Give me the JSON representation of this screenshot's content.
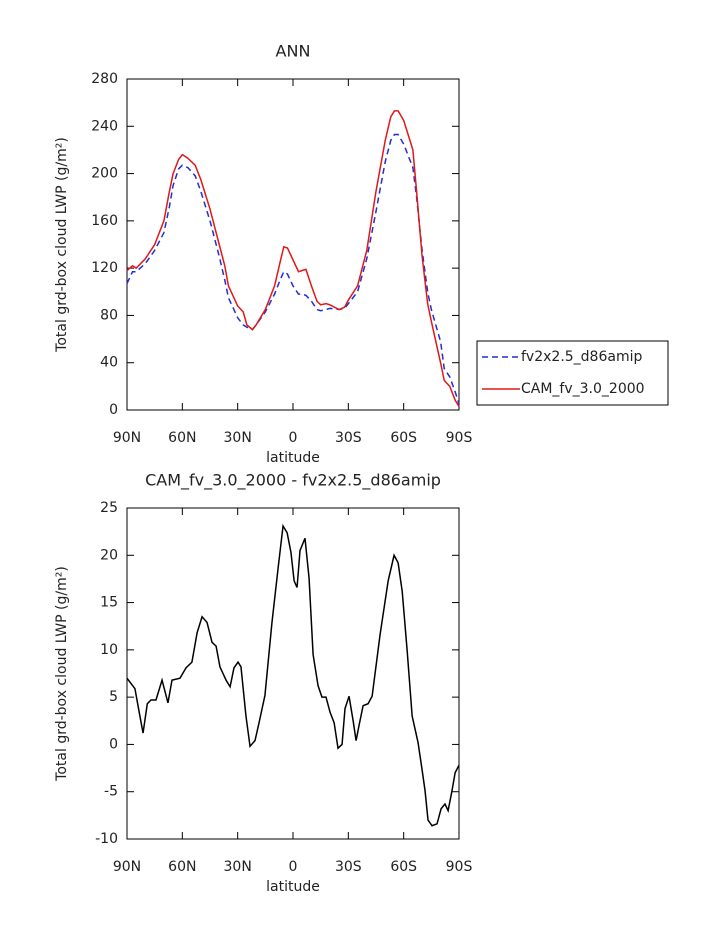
{
  "chart_data": [
    {
      "type": "line",
      "title": "ANN",
      "xlabel": "latitude",
      "ylabel": "Total grd-box cloud LWP (g/m²)",
      "x": [
        90,
        87,
        85,
        80,
        75,
        70,
        67,
        65,
        62,
        60,
        57,
        53,
        50,
        45,
        40,
        37,
        35,
        30,
        27,
        25,
        22,
        20,
        15,
        10,
        7,
        5,
        3,
        0,
        -3,
        -5,
        -7,
        -10,
        -13,
        -15,
        -18,
        -20,
        -25,
        -28,
        -30,
        -35,
        -40,
        -45,
        -50,
        -53,
        -55,
        -57,
        -60,
        -65,
        -67,
        -70,
        -73,
        -75,
        -80,
        -82,
        -85,
        -88,
        -90
      ],
      "series": [
        {
          "name": "fv2x2.5_d86amip",
          "color": "#1f2fd0",
          "dash": "dashed",
          "values": [
            107,
            117,
            117,
            124,
            135,
            150,
            172,
            190,
            204,
            207,
            205,
            198,
            185,
            160,
            130,
            110,
            95,
            78,
            72,
            70,
            68,
            72,
            83,
            98,
            110,
            117,
            115,
            105,
            98,
            98,
            97,
            92,
            85,
            84,
            85,
            86,
            85,
            86,
            90,
            100,
            128,
            168,
            210,
            228,
            233,
            233,
            225,
            205,
            180,
            135,
            100,
            85,
            58,
            35,
            28,
            15,
            5
          ]
        },
        {
          "name": "CAM_fv_3.0_2000",
          "color": "#e01818",
          "dash": "solid",
          "values": [
            118,
            122,
            120,
            128,
            140,
            160,
            185,
            200,
            212,
            216,
            213,
            207,
            195,
            170,
            140,
            122,
            105,
            88,
            83,
            72,
            68,
            72,
            85,
            105,
            125,
            138,
            137,
            127,
            117,
            118,
            119,
            105,
            92,
            89,
            90,
            89,
            85,
            87,
            93,
            105,
            135,
            185,
            228,
            248,
            253,
            253,
            245,
            220,
            185,
            130,
            90,
            75,
            40,
            25,
            20,
            8,
            3
          ]
        }
      ],
      "xlim": [
        90,
        -90
      ],
      "xticks": [
        {
          "value": 90,
          "label": "90N"
        },
        {
          "value": 60,
          "label": "60N"
        },
        {
          "value": 30,
          "label": "30N"
        },
        0,
        {
          "value": -30,
          "label": "30S"
        },
        {
          "value": -60,
          "label": "60S"
        },
        {
          "value": -90,
          "label": "90S"
        }
      ],
      "ylim": [
        0,
        280
      ],
      "yticks": [
        0,
        40,
        80,
        120,
        160,
        200,
        240,
        280
      ],
      "legend": "right"
    },
    {
      "type": "line",
      "title": "CAM_fv_3.0_2000 - fv2x2.5_d86amip",
      "xlabel": "latitude",
      "ylabel": "Total grd-box cloud LWP (g/m²)",
      "x": [
        90,
        85.7,
        83,
        81.3,
        79,
        77,
        74.3,
        71,
        67.8,
        65.6,
        61.3,
        58,
        54.8,
        52,
        49.3,
        46.6,
        43.9,
        41.7,
        39.6,
        36.3,
        34.1,
        32,
        29.8,
        28.2,
        25.5,
        23.3,
        20.6,
        18.4,
        15.2,
        11.4,
        8.1,
        5.4,
        3.2,
        1.1,
        -0.6,
        -2.2,
        -3.8,
        -6.5,
        -8.7,
        -10.9,
        -13.6,
        -15.7,
        -17.9,
        -20.1,
        -22.3,
        -24.4,
        -26.6,
        -28.2,
        -30.4,
        -32.6,
        -34.2,
        -35.8,
        -38,
        -40.7,
        -42.9,
        -47.2,
        -51.6,
        -54.8,
        -57,
        -59.2,
        -61.9,
        -64.6,
        -67.8,
        -70,
        -71.6,
        -73.2,
        -75.4,
        -78.1,
        -80.3,
        -82.4,
        -84.1,
        -86.2,
        -87.9,
        -90
      ],
      "values": [
        7.0,
        5.9,
        3.0,
        1.2,
        4.3,
        4.7,
        4.7,
        6.8,
        4.4,
        6.8,
        7.0,
        8.1,
        8.7,
        11.8,
        13.5,
        12.9,
        10.8,
        10.4,
        8.2,
        6.8,
        6.1,
        8.1,
        8.7,
        8.2,
        3.0,
        -0.2,
        0.4,
        2.3,
        5.2,
        12.9,
        18.6,
        23.1,
        22.4,
        20.3,
        17.3,
        16.6,
        20.5,
        21.8,
        17.6,
        9.5,
        6.2,
        5.0,
        5.0,
        3.4,
        2.3,
        -0.4,
        0,
        3.8,
        5.1,
        2.5,
        0.4,
        2.0,
        4.1,
        4.3,
        5.1,
        11.6,
        17.3,
        20.0,
        19.2,
        16.2,
        9.9,
        3.0,
        0.2,
        -2.7,
        -4.9,
        -8.0,
        -8.6,
        -8.4,
        -6.8,
        -6.3,
        -7.0,
        -4.9,
        -3.0,
        -2.2
      ],
      "color": "#000000",
      "xlim": [
        90,
        -90
      ],
      "xticks": [
        {
          "value": 90,
          "label": "90N"
        },
        {
          "value": 60,
          "label": "60N"
        },
        {
          "value": 30,
          "label": "30N"
        },
        0,
        {
          "value": -30,
          "label": "30S"
        },
        {
          "value": -60,
          "label": "60S"
        },
        {
          "value": -90,
          "label": "90S"
        }
      ],
      "ylim": [
        -10,
        25
      ],
      "yticks": [
        -10,
        -5,
        0,
        5,
        10,
        15,
        20,
        25
      ]
    }
  ]
}
